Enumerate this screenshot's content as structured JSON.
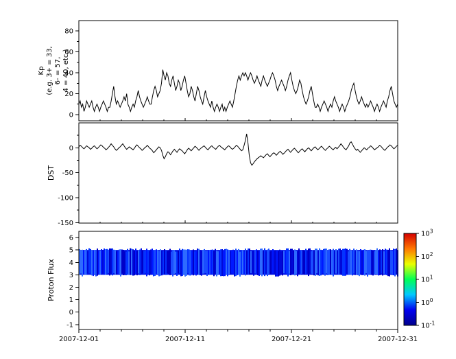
{
  "figure": {
    "bg": "#ffffff",
    "axis_color": "#000000"
  },
  "xaxis": {
    "range_days": [
      0,
      30
    ],
    "major_ticks": [
      {
        "day": 0,
        "label": "2007-12-01"
      },
      {
        "day": 10,
        "label": "2007-12-11"
      },
      {
        "day": 20,
        "label": "2007-12-21"
      },
      {
        "day": 30,
        "label": "2007-12-31"
      }
    ],
    "minor_tick_step_days": 2
  },
  "colorbar": {
    "base_label": "10",
    "tick_exponents": [
      3,
      2,
      1,
      0,
      -1
    ],
    "gradient_bottom_to_top": [
      "#00008b",
      "#0000f0",
      "#00c8ff",
      "#00ff55",
      "#eaff00",
      "#ff7700",
      "#d40000"
    ]
  },
  "chart_data": [
    {
      "type": "line",
      "name": "kp",
      "ylabel_lines": [
        "Kp",
        "(e.g. 3+ = 33,",
        "6- = 57,",
        "4 = 40, etc.)"
      ],
      "yticks": [
        0,
        20,
        40,
        60,
        80
      ],
      "minor_step": 10,
      "ylim": [
        -6,
        90
      ],
      "line_color": "#000000",
      "values": [
        10,
        13,
        7,
        10,
        3,
        7,
        13,
        10,
        7,
        10,
        13,
        7,
        3,
        7,
        10,
        7,
        3,
        7,
        10,
        13,
        10,
        7,
        3,
        7,
        7,
        13,
        20,
        27,
        17,
        10,
        13,
        10,
        7,
        10,
        13,
        17,
        13,
        20,
        10,
        7,
        3,
        7,
        10,
        7,
        13,
        17,
        23,
        17,
        13,
        10,
        7,
        10,
        13,
        17,
        13,
        10,
        10,
        17,
        23,
        27,
        23,
        17,
        20,
        23,
        30,
        43,
        37,
        33,
        40,
        37,
        30,
        27,
        33,
        37,
        30,
        23,
        27,
        33,
        30,
        23,
        27,
        33,
        37,
        30,
        23,
        17,
        20,
        27,
        23,
        17,
        13,
        20,
        27,
        23,
        17,
        13,
        10,
        17,
        23,
        17,
        13,
        10,
        7,
        13,
        7,
        3,
        7,
        10,
        7,
        3,
        7,
        10,
        3,
        7,
        3,
        7,
        10,
        13,
        10,
        7,
        13,
        20,
        27,
        33,
        37,
        33,
        37,
        40,
        37,
        40,
        37,
        33,
        37,
        40,
        37,
        33,
        30,
        33,
        37,
        33,
        30,
        27,
        33,
        37,
        33,
        30,
        27,
        30,
        33,
        37,
        40,
        37,
        33,
        27,
        23,
        27,
        30,
        33,
        30,
        27,
        23,
        27,
        33,
        37,
        40,
        33,
        27,
        23,
        20,
        23,
        27,
        33,
        30,
        23,
        17,
        13,
        10,
        13,
        17,
        23,
        27,
        20,
        13,
        7,
        7,
        10,
        7,
        3,
        7,
        10,
        13,
        10,
        7,
        3,
        7,
        10,
        7,
        13,
        17,
        13,
        10,
        7,
        3,
        7,
        10,
        7,
        3,
        7,
        10,
        13,
        17,
        23,
        27,
        30,
        23,
        17,
        13,
        10,
        13,
        17,
        13,
        10,
        7,
        10,
        7,
        10,
        13,
        10,
        7,
        3,
        7,
        10,
        7,
        3,
        7,
        10,
        13,
        10,
        7,
        13,
        17,
        23,
        27,
        20,
        13,
        10,
        7,
        10
      ]
    },
    {
      "type": "line",
      "name": "dst",
      "ylabel": "DST",
      "yticks": [
        0,
        -50,
        -100,
        -150
      ],
      "minor_step": 25,
      "ylim": [
        -151,
        50
      ],
      "line_color": "#000000",
      "values": [
        2,
        5,
        3,
        0,
        -2,
        1,
        4,
        2,
        0,
        -3,
        -1,
        2,
        4,
        1,
        -2,
        0,
        3,
        6,
        4,
        1,
        -1,
        -4,
        -2,
        1,
        4,
        8,
        5,
        2,
        -2,
        -5,
        -3,
        0,
        2,
        5,
        8,
        4,
        0,
        -3,
        -1,
        2,
        0,
        -2,
        -4,
        -1,
        3,
        6,
        3,
        0,
        -2,
        -5,
        -3,
        0,
        2,
        5,
        2,
        -1,
        -3,
        -6,
        -10,
        -7,
        -4,
        -1,
        2,
        0,
        -5,
        -15,
        -22,
        -18,
        -12,
        -8,
        -10,
        -14,
        -10,
        -6,
        -3,
        -6,
        -9,
        -5,
        -2,
        -4,
        -6,
        -9,
        -12,
        -8,
        -4,
        -1,
        -3,
        -6,
        -3,
        0,
        3,
        1,
        -2,
        -5,
        -2,
        0,
        2,
        4,
        1,
        -2,
        -4,
        -1,
        2,
        4,
        1,
        -1,
        -3,
        0,
        3,
        5,
        2,
        0,
        -2,
        -4,
        -1,
        2,
        4,
        2,
        -1,
        -3,
        -1,
        2,
        5,
        3,
        0,
        -3,
        -6,
        -4,
        5,
        15,
        28,
        10,
        -15,
        -30,
        -35,
        -32,
        -28,
        -25,
        -22,
        -20,
        -18,
        -16,
        -18,
        -20,
        -17,
        -14,
        -12,
        -15,
        -18,
        -15,
        -12,
        -10,
        -12,
        -15,
        -12,
        -9,
        -7,
        -10,
        -13,
        -11,
        -8,
        -5,
        -3,
        -6,
        -9,
        -6,
        -3,
        -1,
        -4,
        -7,
        -10,
        -7,
        -4,
        -2,
        -5,
        -8,
        -5,
        -2,
        0,
        -3,
        -6,
        -3,
        0,
        2,
        -1,
        -4,
        -2,
        1,
        3,
        0,
        -3,
        -5,
        -2,
        0,
        3,
        1,
        -2,
        -4,
        -1,
        1,
        -2,
        1,
        4,
        8,
        5,
        1,
        -2,
        -4,
        0,
        4,
        10,
        12,
        7,
        2,
        -2,
        -5,
        -3,
        -6,
        -9,
        -6,
        -3,
        0,
        -2,
        -4,
        -1,
        1,
        4,
        2,
        -1,
        -4,
        -2,
        0,
        2,
        5,
        3,
        0,
        -3,
        -5,
        -2,
        1,
        3,
        6,
        4,
        1,
        -2,
        0,
        3,
        5
      ]
    },
    {
      "type": "heatmap",
      "name": "proton_flux",
      "ylabel": "Proton Flux",
      "yticks": [
        -1,
        0,
        1,
        2,
        3,
        4,
        5,
        6
      ],
      "ylim": [
        -1.4,
        6.5
      ],
      "band": {
        "y_min": 3,
        "y_max": 5,
        "flux_level_exponent": -1,
        "base_color": "#0013e6",
        "streak_palette": [
          "#0000c8",
          "#0018ff",
          "#0433ff",
          "#1a4dff",
          "#0009d9",
          "#2e6bff"
        ]
      },
      "colorbar_range_exponents": [
        -1,
        3
      ]
    }
  ]
}
